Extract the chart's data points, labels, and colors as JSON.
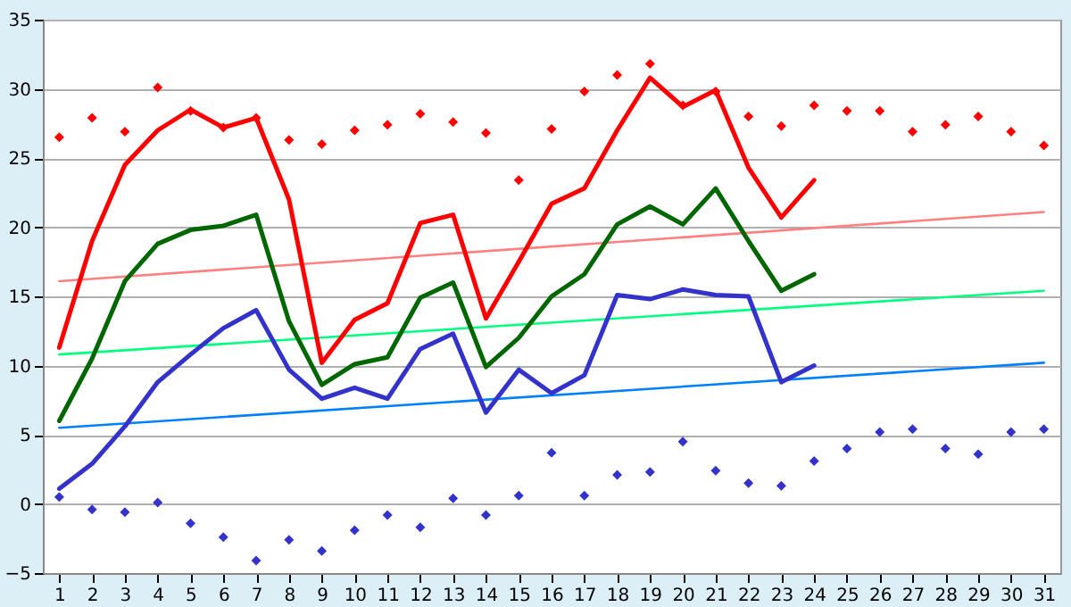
{
  "chart_data": {
    "type": "line",
    "x": [
      1,
      2,
      3,
      4,
      5,
      6,
      7,
      8,
      9,
      10,
      11,
      12,
      13,
      14,
      15,
      16,
      17,
      18,
      19,
      20,
      21,
      22,
      23,
      24,
      25,
      26,
      27,
      28,
      29,
      30,
      31
    ],
    "xlim": [
      0.5,
      31.5
    ],
    "xticks": [
      1,
      2,
      3,
      4,
      5,
      6,
      7,
      8,
      9,
      10,
      11,
      12,
      13,
      14,
      15,
      16,
      17,
      18,
      19,
      20,
      21,
      22,
      23,
      24,
      25,
      26,
      27,
      28,
      29,
      30,
      31
    ],
    "ylim": [
      -5,
      35
    ],
    "yticks": [
      -5,
      0,
      5,
      10,
      15,
      20,
      25,
      30,
      35
    ],
    "grid": "y",
    "series": [
      {
        "color": "#ff8080",
        "x": [
          1,
          31
        ],
        "values": [
          16.1,
          21.1
        ]
      },
      {
        "color": "#00ff80",
        "x": [
          1,
          31
        ],
        "values": [
          10.8,
          15.4
        ]
      },
      {
        "color": "#0080ff",
        "x": [
          1,
          31
        ],
        "values": [
          5.5,
          10.2
        ]
      },
      {
        "color": "#ff0000",
        "x": [
          1,
          2,
          3,
          4,
          5,
          6,
          7,
          8,
          9,
          10,
          11,
          12,
          13,
          14,
          15,
          16,
          17,
          18,
          19,
          20,
          21,
          22,
          23,
          24
        ],
        "values": [
          11.3,
          19,
          24.5,
          27,
          28.5,
          27.2,
          27.9,
          22,
          10.2,
          13.3,
          14.5,
          20.3,
          20.9,
          13.4,
          17.5,
          21.7,
          22.8,
          27,
          30.8,
          28.7,
          29.9,
          24.3,
          20.7,
          23.4
        ]
      },
      {
        "color": "#006600",
        "x": [
          1,
          2,
          3,
          4,
          5,
          6,
          7,
          8,
          9,
          10,
          11,
          12,
          13,
          14,
          15,
          16,
          17,
          18,
          19,
          20,
          21,
          22,
          23,
          24
        ],
        "values": [
          6,
          10.5,
          16.1,
          18.8,
          19.8,
          20.1,
          20.9,
          13.2,
          8.6,
          10.1,
          10.6,
          14.9,
          16,
          9.9,
          12,
          15,
          16.6,
          20.2,
          21.5,
          20.2,
          22.8,
          19,
          15.4,
          16.6
        ]
      },
      {
        "color": "#3333cc",
        "x": [
          1,
          2,
          3,
          4,
          5,
          6,
          7,
          8,
          9,
          10,
          11,
          12,
          13,
          14,
          15,
          16,
          17,
          18,
          19,
          20,
          21,
          22,
          23,
          24
        ],
        "values": [
          1.1,
          2.9,
          5.6,
          8.8,
          10.8,
          12.7,
          14,
          9.7,
          7.6,
          8.4,
          7.6,
          11.2,
          12.3,
          6.6,
          9.7,
          8,
          9.3,
          15.1,
          14.8,
          15.5,
          15.1,
          15,
          8.8,
          10
        ]
      },
      {
        "type": "scatter",
        "marker": "diamond",
        "color": "#ff0000",
        "values": [
          26.5,
          27.9,
          26.9,
          30.1,
          28.4,
          27.2,
          27.9,
          26.3,
          26,
          27,
          27.4,
          28.2,
          27.6,
          26.8,
          23.4,
          27.1,
          29.8,
          31,
          31.8,
          28.8,
          29.8,
          28,
          27.3,
          28.8,
          28.4,
          28.4,
          26.9,
          27.4,
          28,
          26.9,
          25.9
        ]
      },
      {
        "type": "scatter",
        "marker": "diamond",
        "color": "#3333cc",
        "values": [
          0.5,
          -0.4,
          -0.6,
          0.1,
          -1.4,
          -2.4,
          -4.1,
          -2.6,
          -3.4,
          -1.9,
          -0.8,
          -1.7,
          0.4,
          -0.8,
          0.6,
          3.7,
          0.6,
          2.1,
          2.3,
          4.5,
          2.4,
          1.5,
          1.3,
          3.1,
          4,
          5.2,
          5.4,
          4,
          3.6,
          5.2,
          5.4
        ]
      }
    ]
  }
}
